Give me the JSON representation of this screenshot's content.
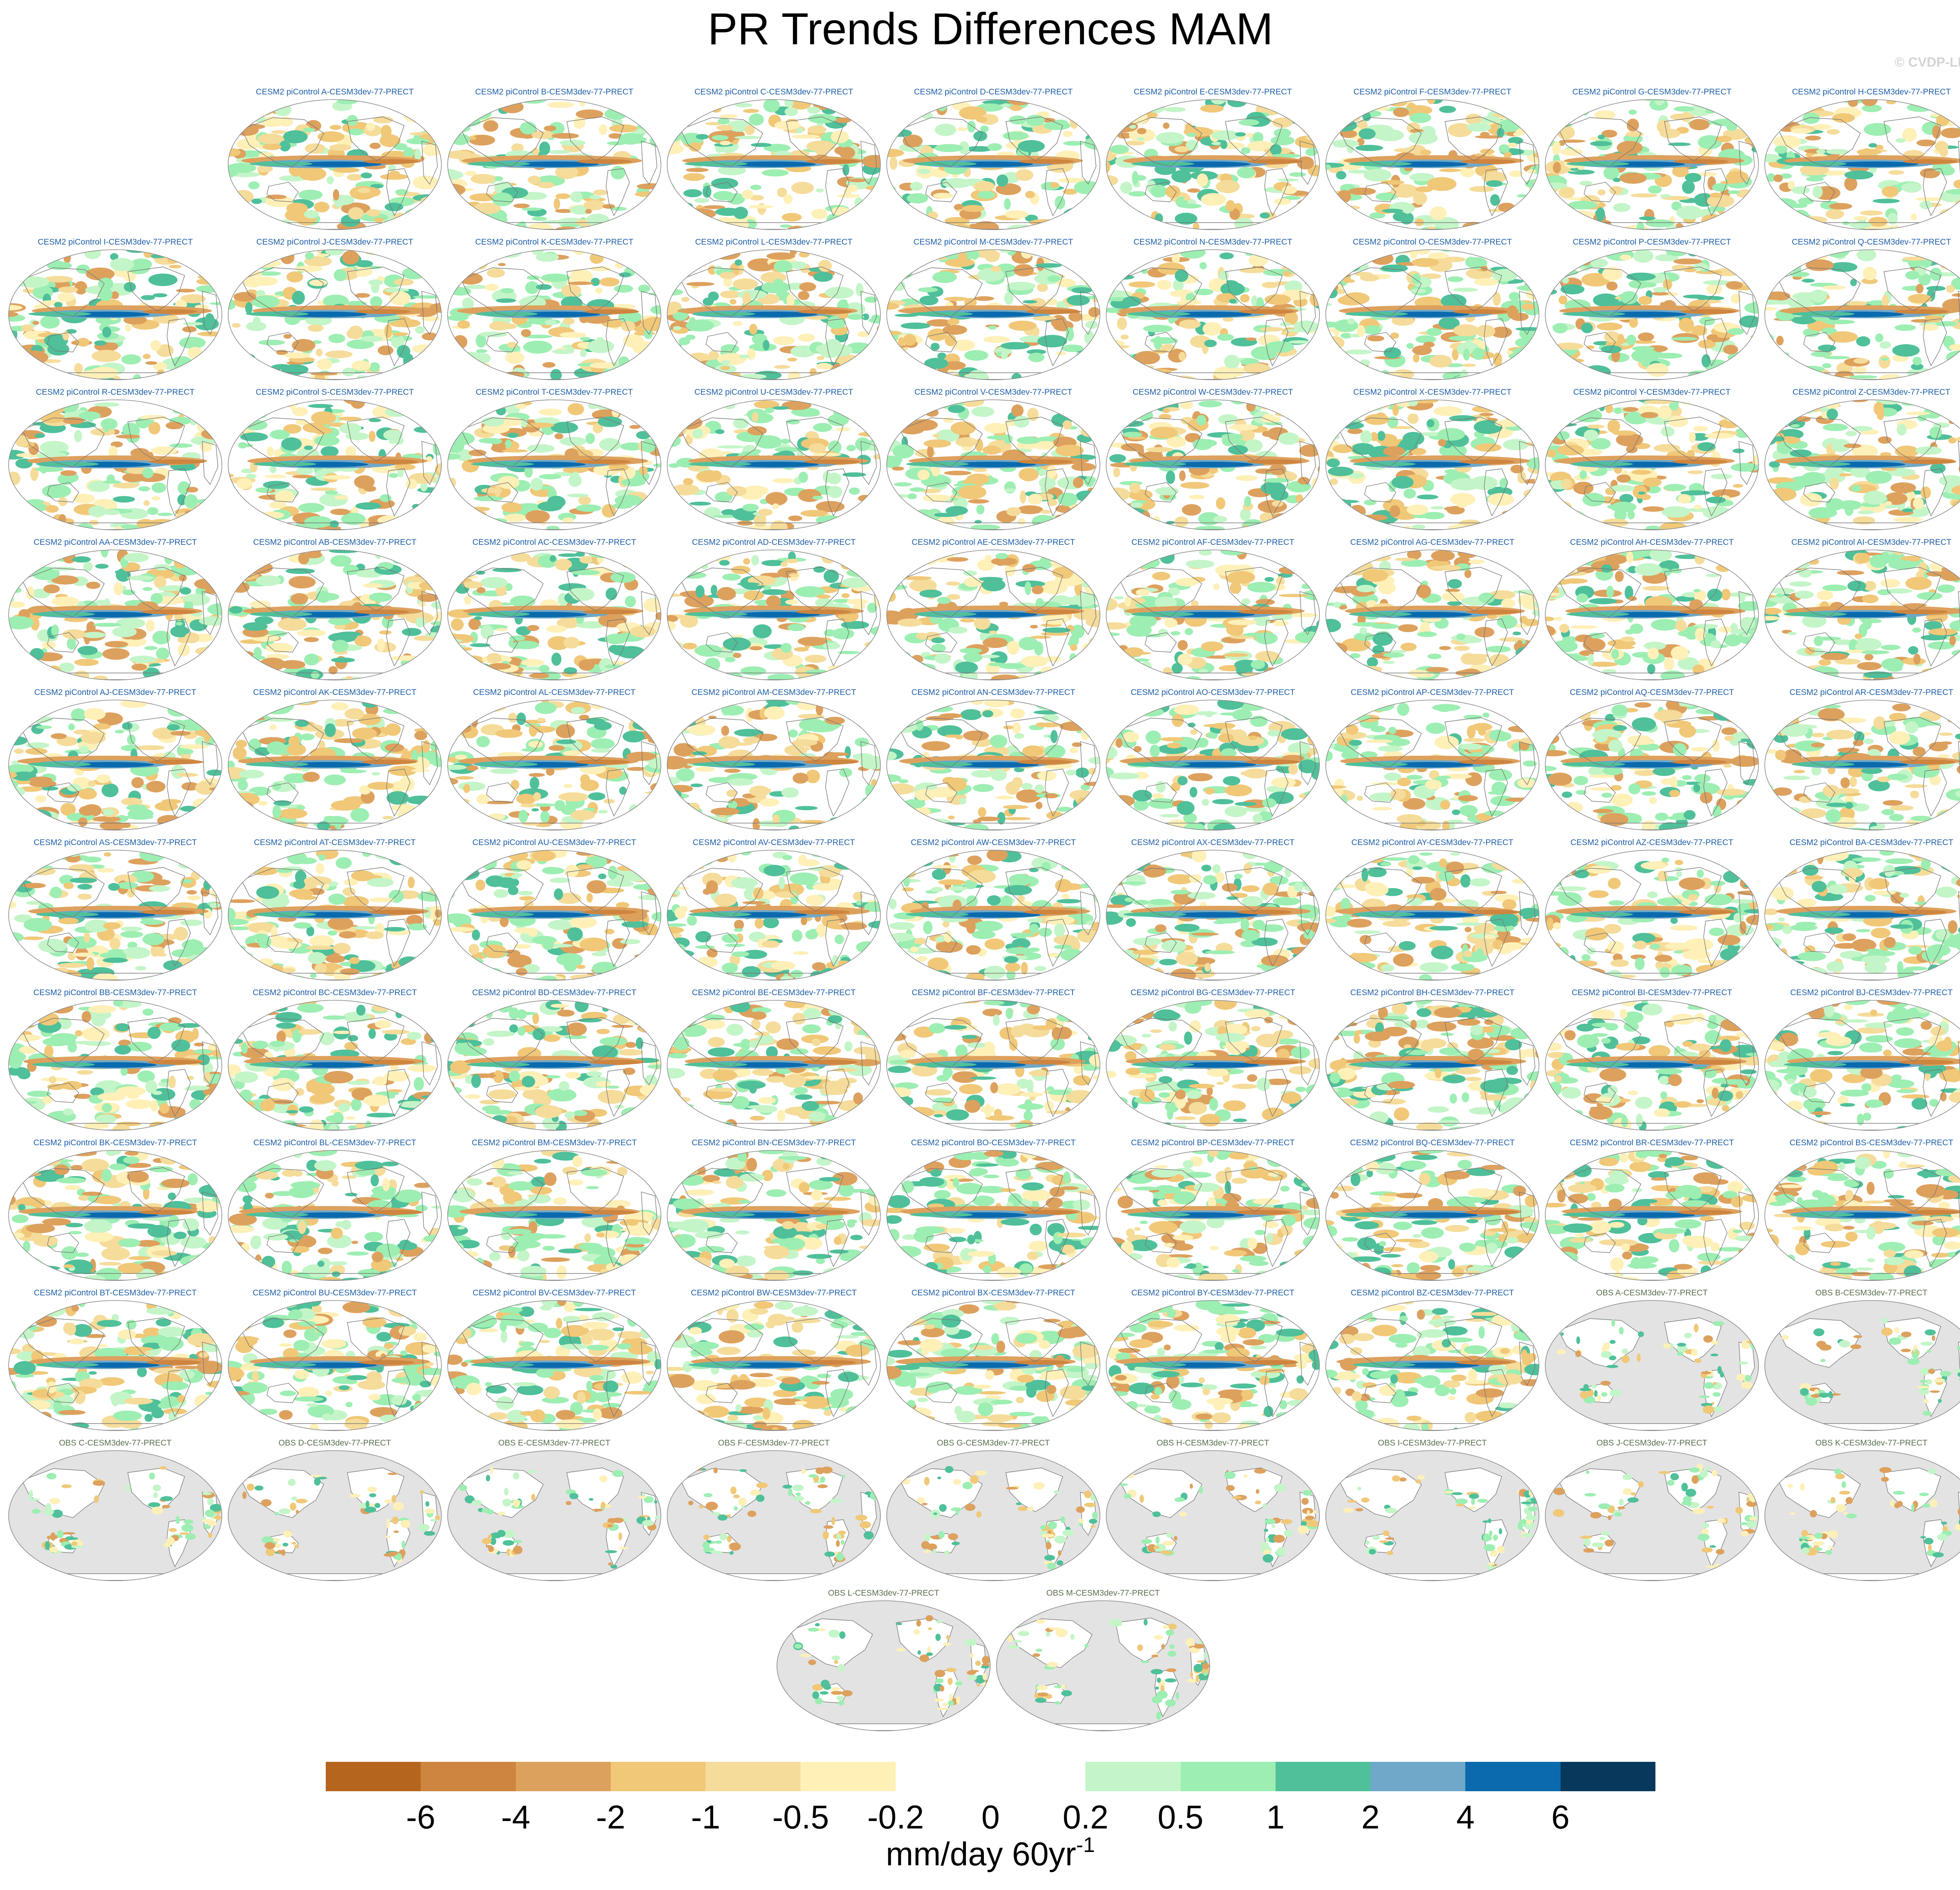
{
  "title": "PR Trends Differences MAM",
  "watermark": "© CVDP-LE",
  "panel_rows": [
    [
      "",
      "CESM2 piControl A-CESM3dev-77-PRECT",
      "CESM2 piControl B-CESM3dev-77-PRECT",
      "CESM2 piControl C-CESM3dev-77-PRECT",
      "CESM2 piControl D-CESM3dev-77-PRECT",
      "CESM2 piControl E-CESM3dev-77-PRECT",
      "CESM2 piControl F-CESM3dev-77-PRECT",
      "CESM2 piControl G-CESM3dev-77-PRECT",
      "CESM2 piControl H-CESM3dev-77-PRECT"
    ],
    [
      "CESM2 piControl I-CESM3dev-77-PRECT",
      "CESM2 piControl J-CESM3dev-77-PRECT",
      "CESM2 piControl K-CESM3dev-77-PRECT",
      "CESM2 piControl L-CESM3dev-77-PRECT",
      "CESM2 piControl M-CESM3dev-77-PRECT",
      "CESM2 piControl N-CESM3dev-77-PRECT",
      "CESM2 piControl O-CESM3dev-77-PRECT",
      "CESM2 piControl P-CESM3dev-77-PRECT",
      "CESM2 piControl Q-CESM3dev-77-PRECT"
    ],
    [
      "CESM2 piControl R-CESM3dev-77-PRECT",
      "CESM2 piControl S-CESM3dev-77-PRECT",
      "CESM2 piControl T-CESM3dev-77-PRECT",
      "CESM2 piControl U-CESM3dev-77-PRECT",
      "CESM2 piControl V-CESM3dev-77-PRECT",
      "CESM2 piControl W-CESM3dev-77-PRECT",
      "CESM2 piControl X-CESM3dev-77-PRECT",
      "CESM2 piControl Y-CESM3dev-77-PRECT",
      "CESM2 piControl Z-CESM3dev-77-PRECT"
    ],
    [
      "CESM2 piControl AA-CESM3dev-77-PRECT",
      "CESM2 piControl AB-CESM3dev-77-PRECT",
      "CESM2 piControl AC-CESM3dev-77-PRECT",
      "CESM2 piControl AD-CESM3dev-77-PRECT",
      "CESM2 piControl AE-CESM3dev-77-PRECT",
      "CESM2 piControl AF-CESM3dev-77-PRECT",
      "CESM2 piControl AG-CESM3dev-77-PRECT",
      "CESM2 piControl AH-CESM3dev-77-PRECT",
      "CESM2 piControl AI-CESM3dev-77-PRECT"
    ],
    [
      "CESM2 piControl AJ-CESM3dev-77-PRECT",
      "CESM2 piControl AK-CESM3dev-77-PRECT",
      "CESM2 piControl AL-CESM3dev-77-PRECT",
      "CESM2 piControl AM-CESM3dev-77-PRECT",
      "CESM2 piControl AN-CESM3dev-77-PRECT",
      "CESM2 piControl AO-CESM3dev-77-PRECT",
      "CESM2 piControl AP-CESM3dev-77-PRECT",
      "CESM2 piControl AQ-CESM3dev-77-PRECT",
      "CESM2 piControl AR-CESM3dev-77-PRECT"
    ],
    [
      "CESM2 piControl AS-CESM3dev-77-PRECT",
      "CESM2 piControl AT-CESM3dev-77-PRECT",
      "CESM2 piControl AU-CESM3dev-77-PRECT",
      "CESM2 piControl AV-CESM3dev-77-PRECT",
      "CESM2 piControl AW-CESM3dev-77-PRECT",
      "CESM2 piControl AX-CESM3dev-77-PRECT",
      "CESM2 piControl AY-CESM3dev-77-PRECT",
      "CESM2 piControl AZ-CESM3dev-77-PRECT",
      "CESM2 piControl BA-CESM3dev-77-PRECT"
    ],
    [
      "CESM2 piControl BB-CESM3dev-77-PRECT",
      "CESM2 piControl BC-CESM3dev-77-PRECT",
      "CESM2 piControl BD-CESM3dev-77-PRECT",
      "CESM2 piControl BE-CESM3dev-77-PRECT",
      "CESM2 piControl BF-CESM3dev-77-PRECT",
      "CESM2 piControl BG-CESM3dev-77-PRECT",
      "CESM2 piControl BH-CESM3dev-77-PRECT",
      "CESM2 piControl BI-CESM3dev-77-PRECT",
      "CESM2 piControl BJ-CESM3dev-77-PRECT"
    ],
    [
      "CESM2 piControl BK-CESM3dev-77-PRECT",
      "CESM2 piControl BL-CESM3dev-77-PRECT",
      "CESM2 piControl BM-CESM3dev-77-PRECT",
      "CESM2 piControl BN-CESM3dev-77-PRECT",
      "CESM2 piControl BO-CESM3dev-77-PRECT",
      "CESM2 piControl BP-CESM3dev-77-PRECT",
      "CESM2 piControl BQ-CESM3dev-77-PRECT",
      "CESM2 piControl BR-CESM3dev-77-PRECT",
      "CESM2 piControl BS-CESM3dev-77-PRECT"
    ],
    [
      "CESM2 piControl BT-CESM3dev-77-PRECT",
      "CESM2 piControl BU-CESM3dev-77-PRECT",
      "CESM2 piControl BV-CESM3dev-77-PRECT",
      "CESM2 piControl BW-CESM3dev-77-PRECT",
      "CESM2 piControl BX-CESM3dev-77-PRECT",
      "CESM2 piControl BY-CESM3dev-77-PRECT",
      "CESM2 piControl BZ-CESM3dev-77-PRECT",
      "OBS A-CESM3dev-77-PRECT",
      "OBS B-CESM3dev-77-PRECT"
    ],
    [
      "OBS C-CESM3dev-77-PRECT",
      "OBS D-CESM3dev-77-PRECT",
      "OBS E-CESM3dev-77-PRECT",
      "OBS F-CESM3dev-77-PRECT",
      "OBS G-CESM3dev-77-PRECT",
      "OBS H-CESM3dev-77-PRECT",
      "OBS I-CESM3dev-77-PRECT",
      "OBS J-CESM3dev-77-PRECT",
      "OBS K-CESM3dev-77-PRECT"
    ],
    [
      "",
      "",
      "",
      "OBS L-CESM3dev-77-PRECT",
      "OBS M-CESM3dev-77-PRECT",
      "",
      "",
      "",
      ""
    ]
  ],
  "colorbar": {
    "colors": [
      "#b5651d",
      "#cd853f",
      "#dda15e",
      "#f0c878",
      "#f5dc9a",
      "#fff0b8",
      "#ffffff",
      "#ffffff",
      "#c4f5c8",
      "#9deeb2",
      "#4fc09a",
      "#6fa8c8",
      "#0a6aad",
      "#08385c"
    ],
    "tick_labels": [
      "-6",
      "-4",
      "-2",
      "-1",
      "-0.5",
      "-0.2",
      "0",
      "0.2",
      "0.5",
      "1",
      "2",
      "4",
      "6"
    ],
    "units": "mm/day 60yr",
    "units_exponent": "-1"
  }
}
